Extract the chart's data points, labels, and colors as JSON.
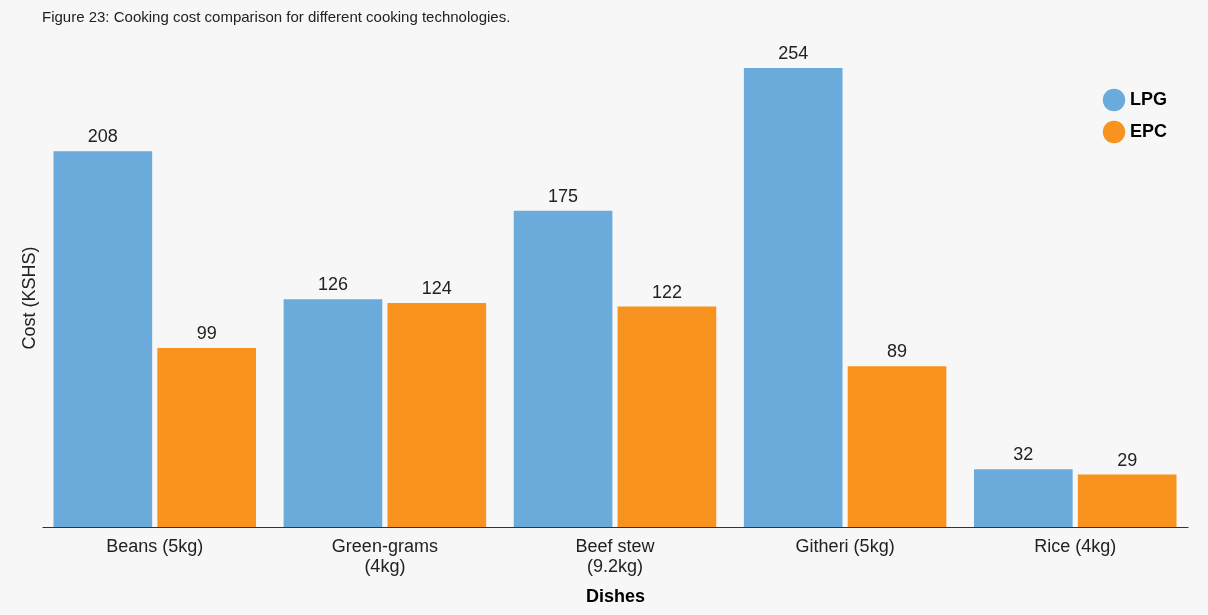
{
  "chart_data": {
    "type": "bar",
    "title": "Figure 23: Cooking cost comparison for different cooking technologies.",
    "xlabel": "Dishes",
    "ylabel": "Cost (KSHS)",
    "categories": [
      "Beans (5kg)",
      "Green-grams (4kg)",
      "Beef stew (9.2kg)",
      "Githeri (5kg)",
      "Rice (4kg)"
    ],
    "series": [
      {
        "name": "LPG",
        "color": "#6aabdc",
        "values": [
          208,
          126,
          175,
          254,
          32
        ]
      },
      {
        "name": "EPC",
        "color": "#f7931e",
        "values": [
          99,
          124,
          122,
          89,
          29
        ]
      }
    ],
    "data_labels": true,
    "legend": "top right",
    "tick_labels": "x",
    "grid": false
  }
}
